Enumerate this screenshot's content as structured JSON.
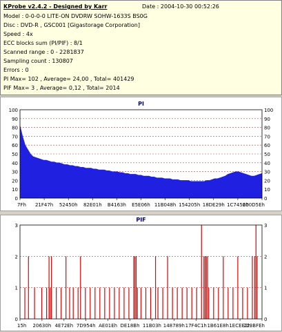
{
  "info": {
    "title": "KProbe v2.4.2 - Designed by Karr",
    "date": "Date : 2004-10-30 00:52:26",
    "lines": [
      "Model : 0-0-0-0 LITE-ON DVDRW SOHW-1633S BS0G",
      "Disc : DVD-R , GSC001 [Gigastorage Corporation]",
      "Speed : 4x",
      "ECC blocks sum (PI/PIF) : 8/1",
      "Scanned range : 0 - 2281837",
      "Sampling count : 130807",
      "Errors : 0",
      "PI Max= 102 , Average= 24,00 , Total= 401429",
      "PIF Max= 3 , Average= 0,12 , Total= 2014"
    ]
  },
  "colors": {
    "series": "#2020e0",
    "pif": "#e00000",
    "title": "#000080",
    "grid": "#c04040"
  },
  "chart_data": [
    {
      "type": "area",
      "title": "PI",
      "ylim": [
        0,
        100
      ],
      "y_ticks": [
        "0",
        "10",
        "20",
        "30",
        "40",
        "50",
        "60",
        "70",
        "80",
        "90",
        "100"
      ],
      "x_ticks": [
        "7Fh",
        "21F47h",
        "52450h",
        "82E01h",
        "B4163h",
        "E5E06h",
        "11B048h",
        "154205h",
        "18DE29h",
        "1C7456h",
        "200D5Eh"
      ],
      "grid": "dashed horizontal",
      "series": [
        {
          "values": [
            82,
            70,
            60,
            55,
            50,
            47,
            46,
            45,
            44,
            43,
            43,
            42,
            41,
            41,
            40,
            40,
            39,
            38,
            38,
            37,
            37,
            36,
            36,
            35,
            35,
            34,
            34,
            34,
            33,
            33,
            32,
            32,
            32,
            31,
            31,
            30,
            30,
            30,
            29,
            29,
            28,
            28,
            27,
            27,
            27,
            26,
            26,
            25,
            25,
            25,
            24,
            24,
            23,
            23,
            23,
            22,
            22,
            22,
            21,
            21,
            21,
            20,
            20,
            20,
            20,
            19,
            19,
            19,
            19,
            19,
            19,
            20,
            20,
            21,
            22,
            22,
            23,
            24,
            25,
            27,
            28,
            29,
            30,
            30,
            29,
            28,
            27,
            26,
            25,
            25,
            26,
            27,
            28
          ]
        }
      ]
    },
    {
      "type": "bar",
      "title": "PIF",
      "ylim": [
        0,
        3
      ],
      "y_ticks": [
        "0",
        "1",
        "2",
        "3"
      ],
      "x_ticks": [
        "15h",
        "20630h",
        "4E72Eh",
        "7D954h",
        "AE01Eh",
        "DE18Bh",
        "11B03h",
        "148789h",
        "17F4C1h",
        "1B61E8h",
        "1ECEE2h",
        "223BFEh"
      ],
      "grid": "dashed horizontal",
      "series": [
        {
          "points": [
            [
              0.02,
              1
            ],
            [
              0.035,
              2
            ],
            [
              0.06,
              1
            ],
            [
              0.09,
              1
            ],
            [
              0.11,
              1
            ],
            [
              0.12,
              2
            ],
            [
              0.125,
              1
            ],
            [
              0.13,
              2
            ],
            [
              0.15,
              1
            ],
            [
              0.17,
              1
            ],
            [
              0.19,
              2
            ],
            [
              0.205,
              1
            ],
            [
              0.22,
              1
            ],
            [
              0.24,
              1
            ],
            [
              0.25,
              2
            ],
            [
              0.27,
              1
            ],
            [
              0.29,
              1
            ],
            [
              0.31,
              1
            ],
            [
              0.33,
              1
            ],
            [
              0.35,
              1
            ],
            [
              0.37,
              1
            ],
            [
              0.39,
              1
            ],
            [
              0.41,
              1
            ],
            [
              0.43,
              1
            ],
            [
              0.45,
              1
            ],
            [
              0.47,
              2
            ],
            [
              0.475,
              2
            ],
            [
              0.48,
              2
            ],
            [
              0.485,
              1
            ],
            [
              0.5,
              1
            ],
            [
              0.52,
              1
            ],
            [
              0.54,
              1
            ],
            [
              0.56,
              2
            ],
            [
              0.57,
              1
            ],
            [
              0.59,
              1
            ],
            [
              0.61,
              2
            ],
            [
              0.63,
              1
            ],
            [
              0.65,
              1
            ],
            [
              0.67,
              1
            ],
            [
              0.69,
              1
            ],
            [
              0.71,
              1
            ],
            [
              0.73,
              1
            ],
            [
              0.75,
              3
            ],
            [
              0.76,
              2
            ],
            [
              0.765,
              2
            ],
            [
              0.77,
              2
            ],
            [
              0.775,
              2
            ],
            [
              0.78,
              1
            ],
            [
              0.8,
              1
            ],
            [
              0.82,
              1
            ],
            [
              0.84,
              2
            ],
            [
              0.86,
              1
            ],
            [
              0.88,
              1
            ],
            [
              0.9,
              2
            ],
            [
              0.92,
              1
            ],
            [
              0.94,
              1
            ],
            [
              0.96,
              2
            ],
            [
              0.97,
              2
            ],
            [
              0.975,
              3
            ],
            [
              0.98,
              2
            ]
          ]
        }
      ]
    }
  ]
}
